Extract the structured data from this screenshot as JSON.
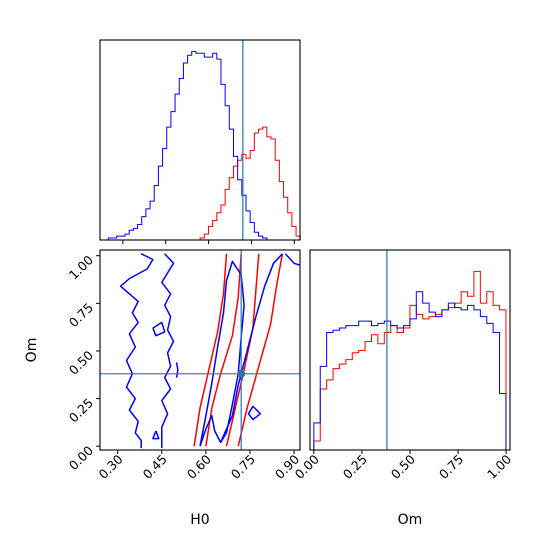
{
  "colors": {
    "series_a": "#ff0000",
    "series_b": "#0000ff",
    "truth": "#1f77b4",
    "frame": "#000000"
  },
  "chart_data": [
    {
      "panel": "h0-histogram",
      "type": "histogram",
      "xlabel": "",
      "ylabel": "",
      "xlim": [
        0.22,
        0.92
      ],
      "x_ticks": [
        0.3,
        0.45,
        0.6,
        0.75,
        0.9
      ],
      "tick_labels_shown": false,
      "truth": 0.72,
      "bins": {
        "start": 0.22,
        "width": 0.0146
      },
      "series": [
        {
          "color": "red",
          "counts": [
            0,
            0,
            0,
            0,
            0,
            0,
            0,
            0,
            0,
            0,
            0,
            0,
            0,
            0,
            0,
            0,
            0,
            0,
            0,
            0,
            0,
            0,
            0,
            0,
            1,
            3,
            7,
            10,
            14,
            18,
            26,
            32,
            38,
            41,
            44,
            42,
            46,
            55,
            57,
            58,
            53,
            52,
            41,
            30,
            22,
            14,
            7,
            2
          ]
        },
        {
          "color": "blue",
          "counts": [
            0,
            0,
            1,
            1,
            2,
            2,
            3,
            5,
            6,
            8,
            12,
            16,
            20,
            28,
            38,
            47,
            58,
            66,
            75,
            83,
            91,
            95,
            97,
            96,
            96,
            94,
            94,
            96,
            93,
            80,
            69,
            57,
            43,
            31,
            23,
            15,
            9,
            4,
            2,
            1,
            0,
            0,
            0,
            0,
            0,
            0,
            0,
            0
          ]
        }
      ]
    },
    {
      "panel": "om-histogram",
      "type": "histogram",
      "xlabel": "Om",
      "ylabel": "",
      "xlim": [
        -0.02,
        1.02
      ],
      "x_ticks": [
        0.0,
        0.25,
        0.5,
        0.75,
        1.0
      ],
      "x_tick_labels": [
        "0.00",
        "0.25",
        "0.50",
        "0.75",
        "1.00"
      ],
      "truth": 0.38,
      "bins": {
        "start": 0.0,
        "width": 0.0333
      },
      "series": [
        {
          "color": "red",
          "counts": [
            4,
            27,
            31,
            36,
            38,
            40,
            43,
            44,
            48,
            51,
            47,
            52,
            55,
            52,
            54,
            64,
            60,
            58,
            59,
            60,
            62,
            63,
            65,
            70,
            68,
            79,
            65,
            70,
            64,
            62
          ]
        },
        {
          "color": "blue",
          "counts": [
            12,
            37,
            52,
            53,
            54,
            55,
            55,
            57,
            57,
            55,
            56,
            57,
            55,
            54,
            55,
            58,
            70,
            65,
            61,
            59,
            62,
            65,
            63,
            62,
            64,
            62,
            59,
            56,
            52,
            25
          ]
        }
      ]
    },
    {
      "panel": "h0-om-contours",
      "type": "contour",
      "xlabel": "H0",
      "ylabel": "Om",
      "xlim": [
        0.24,
        0.92
      ],
      "ylim": [
        -0.02,
        1.03
      ],
      "x_ticks": [
        0.3,
        0.45,
        0.6,
        0.75,
        0.9
      ],
      "x_tick_labels": [
        "0.30",
        "0.45",
        "0.60",
        "0.75",
        "0.90"
      ],
      "y_ticks": [
        0.0,
        0.25,
        0.5,
        0.75,
        1.0
      ],
      "y_tick_labels": [
        "0.00",
        "0.25",
        "0.50",
        "0.75",
        "1.00"
      ],
      "truth": {
        "x": 0.72,
        "y": 0.38
      },
      "series": [
        {
          "color": "red",
          "contours": [
            [
              [
                0.56,
                0.0
              ],
              [
                0.58,
                0.2
              ],
              [
                0.61,
                0.4
              ],
              [
                0.64,
                0.6
              ],
              [
                0.66,
                0.8
              ],
              [
                0.67,
                1.01
              ]
            ],
            [
              [
                0.6,
                0.0
              ],
              [
                0.62,
                0.2
              ],
              [
                0.65,
                0.38
              ],
              [
                0.69,
                0.58
              ],
              [
                0.71,
                0.78
              ],
              [
                0.72,
                1.01
              ]
            ],
            [
              [
                0.67,
                0.0
              ],
              [
                0.7,
                0.2
              ],
              [
                0.73,
                0.4
              ],
              [
                0.76,
                0.62
              ],
              [
                0.77,
                0.82
              ],
              [
                0.78,
                1.01
              ]
            ],
            [
              [
                0.71,
                0.0
              ],
              [
                0.74,
                0.2
              ],
              [
                0.78,
                0.42
              ],
              [
                0.82,
                0.64
              ],
              [
                0.84,
                0.84
              ],
              [
                0.86,
                1.01
              ]
            ]
          ]
        },
        {
          "color": "blue",
          "contours": [
            [
              [
                0.38,
                1.01
              ],
              [
                0.42,
                0.98
              ],
              [
                0.4,
                0.93
              ],
              [
                0.34,
                0.88
              ],
              [
                0.31,
                0.84
              ],
              [
                0.34,
                0.8
              ],
              [
                0.37,
                0.76
              ],
              [
                0.35,
                0.7
              ],
              [
                0.37,
                0.65
              ],
              [
                0.34,
                0.59
              ],
              [
                0.36,
                0.52
              ],
              [
                0.33,
                0.45
              ],
              [
                0.35,
                0.38
              ],
              [
                0.33,
                0.31
              ],
              [
                0.36,
                0.25
              ],
              [
                0.34,
                0.19
              ],
              [
                0.37,
                0.13
              ],
              [
                0.36,
                0.07
              ],
              [
                0.38,
                0.03
              ],
              [
                0.38,
                -0.01
              ]
            ],
            [
              [
                0.46,
                1.01
              ],
              [
                0.49,
                0.96
              ],
              [
                0.47,
                0.91
              ],
              [
                0.45,
                0.86
              ],
              [
                0.48,
                0.8
              ],
              [
                0.46,
                0.74
              ],
              [
                0.48,
                0.68
              ],
              [
                0.47,
                0.61
              ],
              [
                0.49,
                0.55
              ],
              [
                0.47,
                0.49
              ],
              [
                0.48,
                0.42
              ],
              [
                0.46,
                0.36
              ],
              [
                0.48,
                0.3
              ],
              [
                0.45,
                0.24
              ],
              [
                0.47,
                0.17
              ],
              [
                0.45,
                0.1
              ],
              [
                0.45,
                0.05
              ],
              [
                0.45,
                -0.01
              ]
            ],
            [
              [
                0.58,
                0.0
              ],
              [
                0.6,
                0.16
              ],
              [
                0.62,
                0.33
              ],
              [
                0.64,
                0.52
              ],
              [
                0.66,
                0.7
              ],
              [
                0.67,
                0.87
              ],
              [
                0.69,
                0.97
              ],
              [
                0.72,
                0.9
              ],
              [
                0.73,
                0.74
              ],
              [
                0.72,
                0.57
              ],
              [
                0.71,
                0.38
              ],
              [
                0.69,
                0.22
              ],
              [
                0.67,
                0.07
              ],
              [
                0.65,
                0.02
              ],
              [
                0.63,
                0.08
              ],
              [
                0.62,
                0.16
              ],
              [
                0.6,
                0.09
              ],
              [
                0.58,
                0.0
              ]
            ],
            [
              [
                0.65,
                0.02
              ],
              [
                0.69,
                0.16
              ],
              [
                0.71,
                0.32
              ],
              [
                0.74,
                0.5
              ],
              [
                0.77,
                0.68
              ],
              [
                0.8,
                0.84
              ],
              [
                0.83,
                0.96
              ],
              [
                0.86,
                1.01
              ]
            ],
            [
              [
                0.87,
                1.01
              ],
              [
                0.9,
                0.96
              ],
              [
                0.92,
                0.95
              ]
            ],
            [
              [
                0.42,
                0.62
              ],
              [
                0.45,
                0.65
              ],
              [
                0.46,
                0.6
              ],
              [
                0.43,
                0.58
              ],
              [
                0.42,
                0.62
              ]
            ],
            [
              [
                0.5,
                0.44
              ],
              [
                0.505,
                0.4
              ],
              [
                0.5,
                0.36
              ]
            ],
            [
              [
                0.43,
                0.08
              ],
              [
                0.44,
                0.04
              ],
              [
                0.42,
                0.04
              ],
              [
                0.43,
                0.08
              ]
            ],
            [
              [
                0.76,
                0.21
              ],
              [
                0.785,
                0.17
              ],
              [
                0.76,
                0.14
              ],
              [
                0.745,
                0.17
              ],
              [
                0.76,
                0.21
              ]
            ]
          ]
        }
      ]
    }
  ]
}
